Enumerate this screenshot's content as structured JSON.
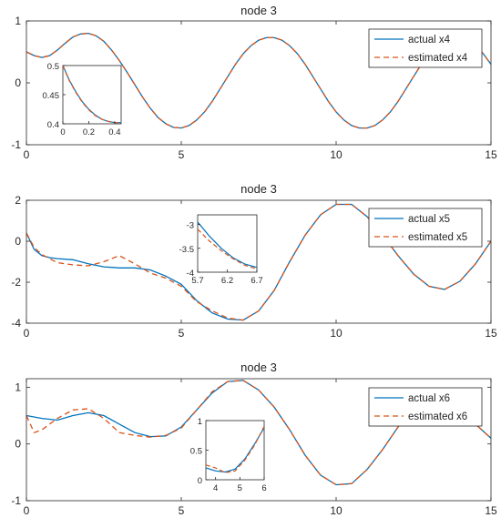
{
  "chart_data": [
    {
      "type": "line",
      "title": "node 3",
      "xlim": [
        0,
        15
      ],
      "ylim": [
        -1,
        1
      ],
      "xticks": [
        "0",
        "5",
        "10",
        "15"
      ],
      "yticks": [
        "1",
        "0",
        "-1"
      ],
      "legend_position": "top-right",
      "series": [
        {
          "name": "actual x4",
          "color": "#0072BD",
          "style": "solid",
          "x": [
            0,
            0.25,
            0.5,
            0.75,
            1,
            1.25,
            1.5,
            1.75,
            2,
            2.25,
            2.5,
            2.75,
            3,
            3.25,
            3.5,
            3.75,
            4,
            4.25,
            4.5,
            4.75,
            5,
            5.25,
            5.5,
            5.75,
            6,
            6.25,
            6.5,
            6.75,
            7,
            7.25,
            7.5,
            7.75,
            8,
            8.25,
            8.5,
            8.75,
            9,
            9.25,
            9.5,
            9.75,
            10,
            10.25,
            10.5,
            10.75,
            11,
            11.25,
            11.5,
            11.75,
            12,
            12.25,
            12.5,
            12.75,
            13,
            13.25,
            13.5,
            13.75,
            14,
            14.25,
            14.5,
            14.75,
            15
          ],
          "y": [
            0.5,
            0.44,
            0.41,
            0.44,
            0.53,
            0.64,
            0.74,
            0.79,
            0.8,
            0.76,
            0.67,
            0.53,
            0.36,
            0.17,
            -0.03,
            -0.23,
            -0.41,
            -0.56,
            -0.66,
            -0.72,
            -0.73,
            -0.69,
            -0.6,
            -0.47,
            -0.3,
            -0.1,
            0.1,
            0.3,
            0.47,
            0.6,
            0.69,
            0.73,
            0.73,
            0.69,
            0.6,
            0.47,
            0.3,
            0.1,
            -0.1,
            -0.3,
            -0.47,
            -0.6,
            -0.69,
            -0.73,
            -0.73,
            -0.69,
            -0.6,
            -0.47,
            -0.3,
            -0.1,
            0.1,
            0.3,
            0.47,
            0.6,
            0.69,
            0.73,
            0.73,
            0.69,
            0.6,
            0.47,
            0.3
          ]
        },
        {
          "name": "estimated x4",
          "color": "#D95319",
          "style": "dashed",
          "x": [
            0,
            0.25,
            0.5,
            0.75,
            1,
            1.25,
            1.5,
            1.75,
            2,
            2.25,
            2.5,
            2.75,
            3,
            3.25,
            3.5,
            3.75,
            4,
            4.25,
            4.5,
            4.75,
            5,
            5.25,
            5.5,
            5.75,
            6,
            6.25,
            6.5,
            6.75,
            7,
            7.25,
            7.5,
            7.75,
            8,
            8.25,
            8.5,
            8.75,
            9,
            9.25,
            9.5,
            9.75,
            10,
            10.25,
            10.5,
            10.75,
            11,
            11.25,
            11.5,
            11.75,
            12,
            12.25,
            12.5,
            12.75,
            13,
            13.25,
            13.5,
            13.75,
            14,
            14.25,
            14.5,
            14.75,
            15
          ],
          "y": [
            0.5,
            0.44,
            0.41,
            0.44,
            0.53,
            0.64,
            0.74,
            0.79,
            0.8,
            0.76,
            0.67,
            0.53,
            0.36,
            0.17,
            -0.03,
            -0.23,
            -0.41,
            -0.56,
            -0.66,
            -0.72,
            -0.73,
            -0.69,
            -0.6,
            -0.47,
            -0.3,
            -0.1,
            0.1,
            0.3,
            0.47,
            0.6,
            0.69,
            0.73,
            0.73,
            0.69,
            0.6,
            0.47,
            0.3,
            0.1,
            -0.1,
            -0.3,
            -0.47,
            -0.6,
            -0.69,
            -0.73,
            -0.73,
            -0.69,
            -0.6,
            -0.47,
            -0.3,
            -0.1,
            0.1,
            0.3,
            0.47,
            0.6,
            0.69,
            0.73,
            0.73,
            0.69,
            0.6,
            0.47,
            0.3
          ]
        }
      ],
      "inset": {
        "xlim": [
          0,
          0.45
        ],
        "ylim": [
          0.4,
          0.5
        ],
        "xticks": [
          "0",
          "0.2",
          "0.4"
        ],
        "yticks": [
          "0.5",
          "0.45",
          "0.4"
        ],
        "series": [
          {
            "name": "actual x4",
            "x": [
              0,
              0.05,
              0.1,
              0.15,
              0.2,
              0.25,
              0.3,
              0.35,
              0.4,
              0.45
            ],
            "y": [
              0.5,
              0.475,
              0.455,
              0.438,
              0.425,
              0.415,
              0.408,
              0.404,
              0.402,
              0.402
            ]
          },
          {
            "name": "estimated x4",
            "x": [
              0,
              0.05,
              0.1,
              0.15,
              0.2,
              0.25,
              0.3,
              0.35,
              0.4,
              0.45
            ],
            "y": [
              0.5,
              0.474,
              0.454,
              0.437,
              0.424,
              0.414,
              0.408,
              0.404,
              0.402,
              0.402
            ]
          }
        ]
      }
    },
    {
      "type": "line",
      "title": "node 3",
      "xlim": [
        0,
        15
      ],
      "ylim": [
        -4,
        2
      ],
      "xticks": [
        "0",
        "5",
        "10",
        "15"
      ],
      "yticks": [
        "2",
        "0",
        "-2",
        "-4"
      ],
      "legend_position": "top-right",
      "series": [
        {
          "name": "actual x5",
          "color": "#0072BD",
          "style": "solid",
          "x": [
            0,
            0.25,
            0.5,
            0.75,
            1,
            1.5,
            2,
            2.5,
            3,
            3.5,
            4,
            4.5,
            5,
            5.5,
            6,
            6.5,
            7,
            7.5,
            8,
            8.5,
            9,
            9.5,
            10,
            10.5,
            11,
            11.5,
            12,
            12.5,
            13,
            13.5,
            14,
            14.5,
            15
          ],
          "y": [
            0.4,
            -0.4,
            -0.7,
            -0.8,
            -0.85,
            -0.9,
            -1.1,
            -1.25,
            -1.3,
            -1.3,
            -1.4,
            -1.7,
            -2.1,
            -2.9,
            -3.5,
            -3.8,
            -3.85,
            -3.4,
            -2.4,
            -1.0,
            0.3,
            1.3,
            1.8,
            1.8,
            1.2,
            0.3,
            -0.7,
            -1.6,
            -2.2,
            -2.35,
            -1.95,
            -1.1,
            0.0
          ]
        },
        {
          "name": "estimated x5",
          "color": "#D95319",
          "style": "dashed",
          "x": [
            0,
            0.25,
            0.5,
            0.75,
            1,
            1.5,
            2,
            2.5,
            3,
            3.5,
            4,
            4.5,
            5,
            5.5,
            6,
            6.5,
            7,
            7.5,
            8,
            8.5,
            9,
            9.5,
            10,
            10.5,
            11,
            11.5,
            12,
            12.5,
            13,
            13.5,
            14,
            14.5,
            15
          ],
          "y": [
            0.4,
            -0.3,
            -0.65,
            -0.85,
            -1.05,
            -1.15,
            -1.2,
            -1.0,
            -0.7,
            -1.1,
            -1.55,
            -1.8,
            -2.2,
            -2.95,
            -3.4,
            -3.75,
            -3.85,
            -3.4,
            -2.4,
            -1.0,
            0.3,
            1.3,
            1.8,
            1.8,
            1.2,
            0.3,
            -0.7,
            -1.6,
            -2.2,
            -2.35,
            -1.95,
            -1.1,
            0.0
          ]
        }
      ],
      "inset": {
        "xlim": [
          5.7,
          6.7
        ],
        "ylim": [
          -4,
          -2.8
        ],
        "xticks": [
          "5.7",
          "6.2",
          "6.7"
        ],
        "yticks": [
          "-3",
          "-3.5",
          "-4"
        ],
        "series": [
          {
            "name": "actual x5",
            "x": [
              5.7,
              5.9,
              6.1,
              6.3,
              6.5,
              6.7
            ],
            "y": [
              -2.95,
              -3.25,
              -3.5,
              -3.7,
              -3.83,
              -3.9
            ]
          },
          {
            "name": "estimated x5",
            "x": [
              5.7,
              5.9,
              6.1,
              6.3,
              6.5,
              6.7
            ],
            "y": [
              -3.1,
              -3.35,
              -3.55,
              -3.72,
              -3.86,
              -3.93
            ]
          }
        ]
      }
    },
    {
      "type": "line",
      "title": "node 3",
      "xlim": [
        0,
        15
      ],
      "ylim": [
        -1,
        1.15
      ],
      "xticks": [
        "0",
        "5",
        "10",
        "15"
      ],
      "yticks": [
        "1",
        "0",
        "-1"
      ],
      "legend_position": "top-right",
      "series": [
        {
          "name": "actual x6",
          "color": "#0072BD",
          "style": "solid",
          "x": [
            0,
            0.5,
            1,
            1.5,
            2,
            2.5,
            3,
            3.5,
            4,
            4.5,
            5,
            5.5,
            6,
            6.5,
            7,
            7.5,
            8,
            8.5,
            9,
            9.5,
            10,
            10.5,
            11,
            11.5,
            12,
            12.5,
            13,
            13.5,
            14,
            14.5,
            15
          ],
          "y": [
            0.5,
            0.45,
            0.42,
            0.5,
            0.55,
            0.5,
            0.35,
            0.2,
            0.13,
            0.14,
            0.3,
            0.6,
            0.9,
            1.1,
            1.12,
            0.95,
            0.65,
            0.25,
            -0.2,
            -0.55,
            -0.72,
            -0.7,
            -0.45,
            -0.1,
            0.3,
            0.65,
            0.85,
            0.85,
            0.65,
            0.35,
            0.1
          ]
        },
        {
          "name": "estimated x6",
          "color": "#D95319",
          "style": "dashed",
          "x": [
            0,
            0.25,
            0.5,
            1,
            1.5,
            2,
            2.5,
            3,
            3.5,
            4,
            4.5,
            5,
            5.5,
            6,
            6.5,
            7,
            7.5,
            8,
            8.5,
            9,
            9.5,
            10,
            10.5,
            11,
            11.5,
            12,
            12.5,
            13,
            13.5,
            14,
            14.5,
            15
          ],
          "y": [
            0.5,
            0.2,
            0.25,
            0.45,
            0.6,
            0.62,
            0.45,
            0.2,
            0.15,
            0.12,
            0.15,
            0.28,
            0.6,
            0.92,
            1.1,
            1.12,
            0.95,
            0.65,
            0.25,
            -0.2,
            -0.55,
            -0.72,
            -0.7,
            -0.45,
            -0.1,
            0.3,
            0.65,
            0.85,
            0.85,
            0.65,
            0.35,
            0.1
          ]
        }
      ],
      "inset": {
        "xlim": [
          3.6,
          6
        ],
        "ylim": [
          0,
          1
        ],
        "xticks": [
          "4",
          "5",
          "6"
        ],
        "yticks": [
          "1",
          "0.5",
          "0"
        ],
        "series": [
          {
            "name": "actual x6",
            "x": [
              3.6,
              4,
              4.4,
              4.8,
              5.2,
              5.6,
              6
            ],
            "y": [
              0.2,
              0.15,
              0.13,
              0.18,
              0.35,
              0.6,
              0.88
            ]
          },
          {
            "name": "estimated x6",
            "x": [
              3.6,
              4,
              4.4,
              4.8,
              5.2,
              5.6,
              6
            ],
            "y": [
              0.25,
              0.2,
              0.12,
              0.15,
              0.33,
              0.58,
              0.9
            ]
          }
        ]
      }
    }
  ]
}
